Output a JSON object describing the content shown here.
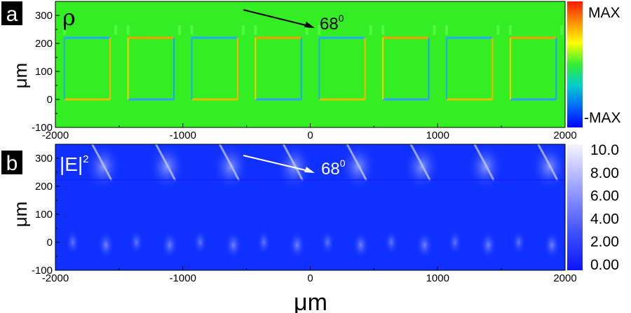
{
  "chart_data": [
    {
      "type": "heatmap",
      "panel_label": "a",
      "quantity_symbol": "ρ",
      "annotation_angle": "68",
      "annotation_degree": "0",
      "xlim": [
        -2000,
        2000
      ],
      "ylim": [
        -100,
        350
      ],
      "xticks": [
        "-2000",
        "-1000",
        "0",
        "1000",
        "2000"
      ],
      "yticks": [
        "300",
        "200",
        "100",
        "0",
        "-100"
      ],
      "ylabel": "μm",
      "colorbar": {
        "top": "MAX",
        "bottom": "-MAX",
        "colors": [
          "#ff1a00",
          "#ff9900",
          "#ffff00",
          "#33ee33",
          "#00cccc",
          "#0066ff",
          "#0000ff"
        ]
      },
      "background_color": "#33ee22"
    },
    {
      "type": "heatmap",
      "panel_label": "b",
      "quantity_symbol": "|E|",
      "quantity_power": "2",
      "annotation_angle": "68",
      "annotation_degree": "0",
      "xlim": [
        -2000,
        2000
      ],
      "ylim": [
        -100,
        350
      ],
      "xticks": [
        "-2000",
        "-1000",
        "0",
        "1000",
        "2000"
      ],
      "yticks": [
        "300",
        "200",
        "100",
        "0",
        "-100"
      ],
      "ylabel": "μm",
      "xlabel": "μm",
      "colorbar": {
        "ticks": [
          "10.0",
          "8.00",
          "6.00",
          "4.00",
          "2.00",
          "0.00"
        ],
        "colors": [
          "#f4f4ff",
          "#0a10ff"
        ]
      },
      "background_color": "#1030ff"
    }
  ]
}
